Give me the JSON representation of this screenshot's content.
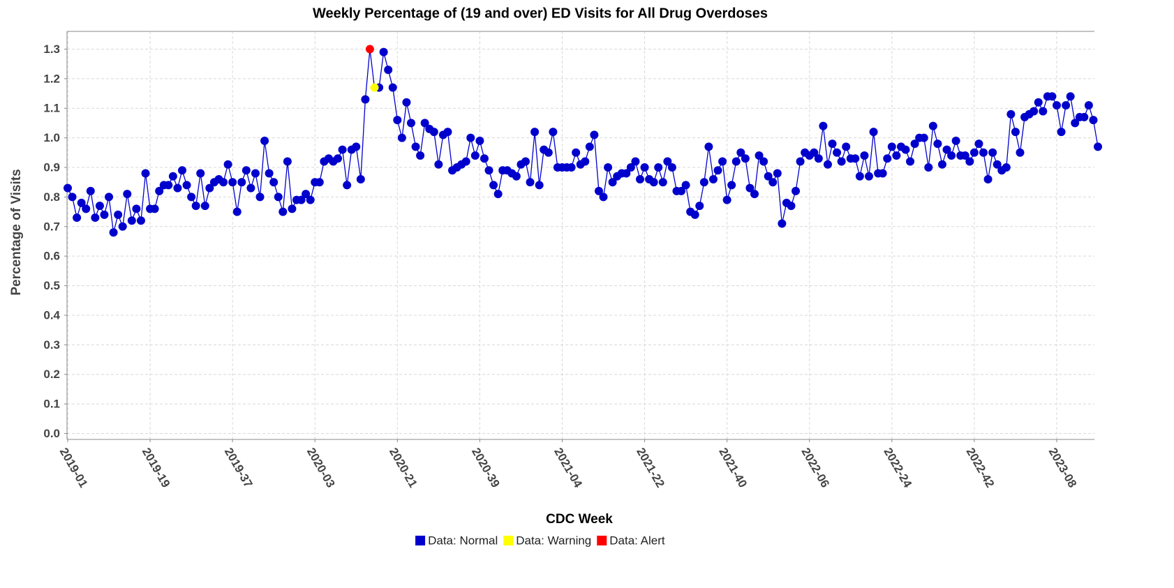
{
  "chart_data": {
    "type": "line",
    "title": "Weekly Percentage of (19 and over) ED Visits for All Drug Overdoses",
    "x_label": "CDC Week",
    "y_label": "Percentage of Visits",
    "ylim": [
      -0.02,
      1.36
    ],
    "yticks": [
      {
        "value": 0,
        "label": "0.0"
      },
      0.1,
      0.2,
      0.3,
      0.4,
      0.5,
      0.6,
      0.7,
      0.8,
      0.9,
      {
        "value": 1,
        "label": "1.0"
      },
      1.1,
      1.2,
      1.3
    ],
    "grid": true,
    "legend": "bottom",
    "categories": [
      "2019-01",
      null,
      null,
      null,
      null,
      null,
      null,
      null,
      null,
      null,
      null,
      null,
      null,
      null,
      null,
      null,
      null,
      null,
      "2019-19",
      null,
      null,
      null,
      null,
      null,
      null,
      null,
      null,
      null,
      null,
      null,
      null,
      null,
      null,
      null,
      null,
      null,
      "2019-37",
      null,
      null,
      null,
      null,
      null,
      null,
      null,
      null,
      null,
      null,
      null,
      null,
      null,
      null,
      null,
      null,
      null,
      "2020-03",
      null,
      null,
      null,
      null,
      null,
      null,
      null,
      null,
      null,
      null,
      null,
      null,
      null,
      null,
      null,
      null,
      null,
      "2020-21",
      null,
      null,
      null,
      null,
      null,
      null,
      null,
      null,
      null,
      null,
      null,
      null,
      null,
      null,
      null,
      null,
      null,
      "2020-39",
      null,
      null,
      null,
      null,
      null,
      null,
      null,
      null,
      null,
      null,
      null,
      null,
      null,
      null,
      null,
      null,
      null,
      "2021-04",
      null,
      null,
      null,
      null,
      null,
      null,
      null,
      null,
      null,
      null,
      null,
      null,
      null,
      null,
      null,
      null,
      null,
      "2021-22",
      null,
      null,
      null,
      null,
      null,
      null,
      null,
      null,
      null,
      null,
      null,
      null,
      null,
      null,
      null,
      null,
      null,
      "2021-40",
      null,
      null,
      null,
      null,
      null,
      null,
      null,
      null,
      null,
      null,
      null,
      null,
      null,
      null,
      null,
      null,
      null,
      "2022-06",
      null,
      null,
      null,
      null,
      null,
      null,
      null,
      null,
      null,
      null,
      null,
      null,
      null,
      null,
      null,
      null,
      null,
      "2022-24",
      null,
      null,
      null,
      null,
      null,
      null,
      null,
      null,
      null,
      null,
      null,
      null,
      null,
      null,
      null,
      null,
      null,
      "2022-42",
      null,
      null,
      null,
      null,
      null,
      null,
      null,
      null,
      null,
      null,
      null,
      null,
      null,
      null,
      null,
      null,
      null,
      "2023-08",
      null,
      null,
      null,
      null,
      null,
      null,
      null,
      null,
      null
    ],
    "series": [
      {
        "name": "Data: Normal",
        "color": "#0000cc",
        "values": [
          0.83,
          0.8,
          0.73,
          0.78,
          0.76,
          0.82,
          0.73,
          0.77,
          0.74,
          0.8,
          0.68,
          0.74,
          0.7,
          0.81,
          0.72,
          0.76,
          0.72,
          0.88,
          0.76,
          0.76,
          0.82,
          0.84,
          0.84,
          0.87,
          0.83,
          0.89,
          0.84,
          0.8,
          0.77,
          0.88,
          0.77,
          0.83,
          0.85,
          0.86,
          0.85,
          0.91,
          0.85,
          0.75,
          0.85,
          0.89,
          0.83,
          0.88,
          0.8,
          0.99,
          0.88,
          0.85,
          0.8,
          0.75,
          0.92,
          0.76,
          0.79,
          0.79,
          0.81,
          0.79,
          0.85,
          0.85,
          0.92,
          0.93,
          0.92,
          0.93,
          0.96,
          0.84,
          0.96,
          0.97,
          0.86,
          1.13,
          null,
          null,
          1.17,
          1.29,
          1.23,
          1.17,
          1.06,
          1.0,
          1.12,
          1.05,
          0.97,
          0.94,
          1.05,
          1.03,
          1.02,
          0.91,
          1.01,
          1.02,
          0.89,
          0.9,
          0.91,
          0.92,
          1.0,
          0.94,
          0.99,
          0.93,
          0.89,
          0.84,
          0.81,
          0.89,
          0.89,
          0.88,
          0.87,
          0.91,
          0.92,
          0.85,
          1.02,
          0.84,
          0.96,
          0.95,
          1.02,
          0.9,
          0.9,
          0.9,
          0.9,
          0.95,
          0.91,
          0.92,
          0.97,
          1.01,
          0.82,
          0.8,
          0.9,
          0.85,
          0.87,
          0.88,
          0.88,
          0.9,
          0.92,
          0.86,
          0.9,
          0.86,
          0.85,
          0.9,
          0.85,
          0.92,
          0.9,
          0.82,
          0.82,
          0.84,
          0.75,
          0.74,
          0.77,
          0.85,
          0.97,
          0.86,
          0.89,
          0.92,
          0.79,
          0.84,
          0.92,
          0.95,
          0.93,
          0.83,
          0.81,
          0.94,
          0.92,
          0.87,
          0.85,
          0.88,
          0.71,
          0.78,
          0.77,
          0.82,
          0.92,
          0.95,
          0.94,
          0.95,
          0.93,
          1.04,
          0.91,
          0.98,
          0.95,
          0.92,
          0.97,
          0.93,
          0.93,
          0.87,
          0.94,
          0.87,
          1.02,
          0.88,
          0.88,
          0.93,
          0.97,
          0.94,
          0.97,
          0.96,
          0.92,
          0.98,
          1.0,
          1.0,
          0.9,
          1.04,
          0.98,
          0.91,
          0.96,
          0.94,
          0.99,
          0.94,
          0.94,
          0.92,
          0.95,
          0.98,
          0.95,
          0.86,
          0.95,
          0.91,
          0.89,
          0.9,
          1.08,
          1.02,
          0.95,
          1.07,
          1.08,
          1.09,
          1.12,
          1.09,
          1.14,
          1.14,
          1.11,
          1.02,
          1.11,
          1.14,
          1.05,
          1.07,
          1.07,
          1.11,
          1.06,
          0.97
        ]
      },
      {
        "name": "Data: Warning",
        "color": "#ffff00",
        "values": [
          null,
          null,
          null,
          null,
          null,
          null,
          null,
          null,
          null,
          null,
          null,
          null,
          null,
          null,
          null,
          null,
          null,
          null,
          null,
          null,
          null,
          null,
          null,
          null,
          null,
          null,
          null,
          null,
          null,
          null,
          null,
          null,
          null,
          null,
          null,
          null,
          null,
          null,
          null,
          null,
          null,
          null,
          null,
          null,
          null,
          null,
          null,
          null,
          null,
          null,
          null,
          null,
          null,
          null,
          null,
          null,
          null,
          null,
          null,
          null,
          null,
          null,
          null,
          null,
          null,
          null,
          null,
          1.17,
          null,
          null,
          null,
          null,
          null,
          null,
          null,
          null,
          null,
          null,
          null,
          null,
          null,
          null,
          null,
          null,
          null,
          null,
          null,
          null,
          null,
          null,
          null,
          null,
          null,
          null,
          null,
          null,
          null,
          null,
          null,
          null,
          null,
          null,
          null,
          null,
          null,
          null,
          null,
          null,
          null,
          null,
          null,
          null,
          null,
          null,
          null,
          null,
          null,
          null,
          null,
          null,
          null,
          null,
          null,
          null,
          null,
          null,
          null,
          null,
          null,
          null,
          null,
          null,
          null,
          null,
          null,
          null,
          null,
          null,
          null,
          null,
          null,
          null,
          null,
          null,
          null,
          null,
          null,
          null,
          null,
          null,
          null,
          null,
          null,
          null,
          null,
          null,
          null,
          null,
          null,
          null,
          null,
          null,
          null,
          null,
          null,
          null,
          null,
          null,
          null,
          null,
          null,
          null,
          null,
          null,
          null,
          null,
          null,
          null,
          null,
          null,
          null,
          null,
          null,
          null,
          null,
          null,
          null,
          null,
          null,
          null,
          null,
          null,
          null,
          null,
          null,
          null,
          null,
          null,
          null,
          null,
          null,
          null,
          null,
          null,
          null,
          null,
          null,
          null,
          null,
          null,
          null,
          null,
          null,
          null,
          null,
          null,
          null,
          null,
          null,
          null,
          null,
          null,
          null,
          null,
          null,
          null
        ]
      },
      {
        "name": "Data: Alert",
        "color": "#ff0000",
        "values": [
          null,
          null,
          null,
          null,
          null,
          null,
          null,
          null,
          null,
          null,
          null,
          null,
          null,
          null,
          null,
          null,
          null,
          null,
          null,
          null,
          null,
          null,
          null,
          null,
          null,
          null,
          null,
          null,
          null,
          null,
          null,
          null,
          null,
          null,
          null,
          null,
          null,
          null,
          null,
          null,
          null,
          null,
          null,
          null,
          null,
          null,
          null,
          null,
          null,
          null,
          null,
          null,
          null,
          null,
          null,
          null,
          null,
          null,
          null,
          null,
          null,
          null,
          null,
          null,
          null,
          null,
          1.3,
          null,
          null,
          null,
          null,
          null,
          null,
          null,
          null,
          null,
          null,
          null,
          null,
          null,
          null,
          null,
          null,
          null,
          null,
          null,
          null,
          null,
          null,
          null,
          null,
          null,
          null,
          null,
          null,
          null,
          null,
          null,
          null,
          null,
          null,
          null,
          null,
          null,
          null,
          null,
          null,
          null,
          null,
          null,
          null,
          null,
          null,
          null,
          null,
          null,
          null,
          null,
          null,
          null,
          null,
          null,
          null,
          null,
          null,
          null,
          null,
          null,
          null,
          null,
          null,
          null,
          null,
          null,
          null,
          null,
          null,
          null,
          null,
          null,
          null,
          null,
          null,
          null,
          null,
          null,
          null,
          null,
          null,
          null,
          null,
          null,
          null,
          null,
          null,
          null,
          null,
          null,
          null,
          null,
          null,
          null,
          null,
          null,
          null,
          null,
          null,
          null,
          null,
          null,
          null,
          null,
          null,
          null,
          null,
          null,
          null,
          null,
          null,
          null,
          null,
          null,
          null,
          null,
          null,
          null,
          null,
          null,
          null,
          null,
          null,
          null,
          null,
          null,
          null,
          null,
          null,
          null,
          null,
          null,
          null,
          null,
          null,
          null,
          null,
          null,
          null,
          null,
          null,
          null,
          null,
          null,
          null,
          null,
          null,
          null,
          null,
          null,
          null,
          null,
          null,
          null,
          null,
          null,
          null,
          null
        ]
      }
    ]
  }
}
